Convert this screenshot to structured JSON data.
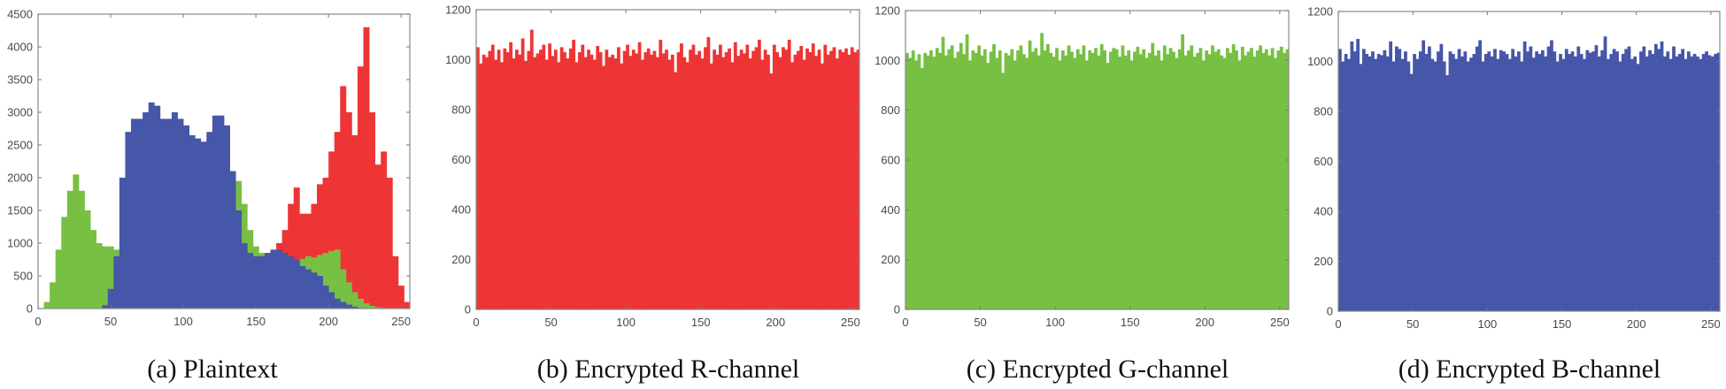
{
  "chart_data": [
    {
      "type": "bar",
      "caption": "(a) Plaintext",
      "xlim": [
        0,
        256
      ],
      "ylim": [
        0,
        4500
      ],
      "xticks": [
        "0",
        "50",
        "100",
        "150",
        "200",
        "250"
      ],
      "yticks": [
        "0",
        "500",
        "1000",
        "1500",
        "2000",
        "2500",
        "3000",
        "3500",
        "4000",
        "4500"
      ],
      "bin_width": 4,
      "x_start": 0,
      "series": [
        {
          "color": "#EE3535",
          "values": [
            0,
            0,
            0,
            0,
            0,
            0,
            0,
            0,
            0,
            0,
            0,
            0,
            0,
            0,
            0,
            0,
            0,
            0,
            0,
            0,
            0,
            0,
            0,
            0,
            0,
            0,
            0,
            0,
            0,
            0,
            0,
            0,
            0,
            0,
            0,
            0,
            0,
            0,
            800,
            850,
            900,
            1000,
            1200,
            1600,
            1850,
            1450,
            1450,
            1600,
            1900,
            2000,
            2400,
            2700,
            3400,
            3000,
            2650,
            3700,
            4300,
            3000,
            2200,
            2400,
            2000,
            800,
            350,
            100
          ]
        },
        {
          "color": "#77C043",
          "values": [
            0,
            100,
            400,
            900,
            1400,
            1800,
            2050,
            1800,
            1500,
            1200,
            1000,
            950,
            950,
            900,
            1000,
            1200,
            1300,
            1400,
            1500,
            1600,
            1700,
            1800,
            1900,
            1900,
            1900,
            1900,
            1900,
            1900,
            1950,
            2000,
            2050,
            2100,
            2100,
            2100,
            1950,
            1600,
            1200,
            950,
            850,
            800,
            780,
            760,
            740,
            720,
            700,
            760,
            800,
            780,
            820,
            850,
            880,
            900,
            600,
            400,
            250,
            150,
            80,
            40,
            20,
            10,
            0,
            0,
            0,
            0
          ]
        },
        {
          "color": "#4656A8",
          "values": [
            0,
            0,
            0,
            0,
            0,
            0,
            0,
            0,
            0,
            0,
            0,
            50,
            300,
            800,
            2000,
            2700,
            2900,
            2900,
            3000,
            3150,
            3100,
            2900,
            2900,
            3000,
            2900,
            2800,
            2650,
            2600,
            2550,
            2700,
            2950,
            2950,
            2800,
            2100,
            1500,
            1000,
            850,
            800,
            800,
            850,
            900,
            900,
            850,
            800,
            750,
            650,
            600,
            550,
            500,
            350,
            250,
            150,
            100,
            60,
            30,
            10,
            0,
            0,
            0,
            0,
            0,
            0,
            0,
            0
          ]
        }
      ]
    },
    {
      "type": "bar",
      "caption": "(b) Encrypted R-channel",
      "xlim": [
        0,
        256
      ],
      "ylim": [
        0,
        1200
      ],
      "xticks": [
        "0",
        "50",
        "100",
        "150",
        "200",
        "250"
      ],
      "yticks": [
        "0",
        "200",
        "400",
        "600",
        "800",
        "1000",
        "1200"
      ],
      "bin_width": 2,
      "x_start": 0,
      "series": [
        {
          "color": "#EE3535",
          "values": [
            1050,
            985,
            1020,
            1010,
            1035,
            1060,
            1000,
            1040,
            990,
            1045,
            1030,
            1070,
            1005,
            1040,
            1020,
            1085,
            995,
            1035,
            1120,
            1010,
            1025,
            1040,
            1060,
            1000,
            1065,
            1015,
            1040,
            990,
            1050,
            1030,
            1005,
            1045,
            1080,
            990,
            1030,
            1060,
            1010,
            1040,
            1020,
            1000,
            1055,
            1030,
            975,
            1040,
            1010,
            1020,
            1005,
            1050,
            985,
            1035,
            1060,
            1015,
            1040,
            1025,
            1070,
            1000,
            1030,
            1045,
            1020,
            1035,
            1010,
            1080,
            1025,
            1040,
            1000,
            1020,
            950,
            1030,
            1065,
            1010,
            990,
            1040,
            1060,
            1020,
            1035,
            1005,
            1050,
            1090,
            985,
            1040,
            1020,
            1060,
            1010,
            1030,
            1045,
            990,
            1070,
            1015,
            1040,
            1025,
            1060,
            1005,
            1035,
            1050,
            1080,
            1000,
            1040,
            1020,
            945,
            1060,
            1030,
            1010,
            1050,
            1040,
            1080,
            990,
            1020,
            1035,
            1055,
            1000,
            1045,
            1030,
            1065,
            1015,
            1040,
            985,
            1060,
            1020,
            1035,
            1050,
            1005,
            1040,
            1030,
            1045,
            1020,
            1050,
            1030,
            1040
          ]
        }
      ]
    },
    {
      "type": "bar",
      "caption": "(c) Encrypted G-channel",
      "xlim": [
        0,
        256
      ],
      "ylim": [
        0,
        1200
      ],
      "xticks": [
        "0",
        "50",
        "100",
        "150",
        "200",
        "250"
      ],
      "yticks": [
        "0",
        "200",
        "400",
        "600",
        "800",
        "1000",
        "1200"
      ],
      "bin_width": 2,
      "x_start": 0,
      "series": [
        {
          "color": "#77C043",
          "values": [
            1030,
            1010,
            1040,
            1000,
            1025,
            970,
            1030,
            1020,
            1040,
            1015,
            1050,
            1030,
            1095,
            1020,
            1045,
            1060,
            1010,
            1035,
            1070,
            1025,
            1105,
            1000,
            1040,
            1030,
            1060,
            1020,
            1045,
            990,
            1035,
            1065,
            1010,
            1040,
            950,
            1030,
            1020,
            1045,
            1000,
            1040,
            1060,
            1025,
            1010,
            1080,
            1035,
            1050,
            1020,
            1110,
            1040,
            1065,
            1030,
            1015,
            1050,
            1000,
            1040,
            1020,
            1060,
            1035,
            1010,
            1045,
            1025,
            1060,
            1000,
            1040,
            1030,
            1050,
            1020,
            1065,
            1040,
            990,
            1035,
            1050,
            1045,
            1015,
            1060,
            1020,
            1040,
            1000,
            1035,
            1055,
            1025,
            1045,
            1010,
            1030,
            1070,
            1020,
            1040,
            1000,
            1060,
            1025,
            1050,
            1035,
            1010,
            1045,
            1105,
            1020,
            1040,
            1060,
            1015,
            1030,
            1050,
            1000,
            1040,
            1025,
            1060,
            1035,
            1045,
            1020,
            1010,
            1050,
            1030,
            1065,
            1040,
            1000,
            1055,
            1020,
            1035,
            1050,
            1015,
            1040,
            1060,
            1030,
            1045,
            1020,
            1050,
            1010,
            1040,
            1055,
            1030,
            1045
          ]
        }
      ]
    },
    {
      "type": "bar",
      "caption": "(d) Encrypted B-channel",
      "xlim": [
        0,
        256
      ],
      "ylim": [
        0,
        1200
      ],
      "xticks": [
        "0",
        "50",
        "100",
        "150",
        "200",
        "250"
      ],
      "yticks": [
        "0",
        "200",
        "400",
        "600",
        "800",
        "1000",
        "1200"
      ],
      "bin_width": 2,
      "x_start": 0,
      "series": [
        {
          "color": "#4656A8",
          "values": [
            1050,
            1000,
            1030,
            1010,
            1080,
            1040,
            1090,
            990,
            1050,
            1030,
            1020,
            1040,
            1010,
            1030,
            1025,
            1045,
            1020,
            1080,
            1000,
            1060,
            1050,
            1010,
            1040,
            1000,
            950,
            1030,
            1010,
            1040,
            1085,
            1030,
            1060,
            1010,
            1000,
            1040,
            1070,
            1000,
            945,
            1040,
            1030,
            1010,
            1050,
            1020,
            1040,
            1000,
            1015,
            1030,
            1060,
            1085,
            1000,
            1030,
            1040,
            1020,
            1050,
            1010,
            1045,
            1040,
            1030,
            1010,
            1050,
            1020,
            1040,
            1000,
            1080,
            1040,
            1060,
            1015,
            1040,
            1030,
            1045,
            1020,
            1060,
            1085,
            1040,
            1000,
            1030,
            1010,
            1050,
            1030,
            1040,
            1020,
            1060,
            1030,
            1010,
            1045,
            1035,
            1040,
            1065,
            1020,
            1045,
            1100,
            1010,
            1030,
            1050,
            1040,
            1000,
            1030,
            1050,
            1060,
            1010,
            1020,
            990,
            1040,
            1060,
            1020,
            1045,
            1030,
            1070,
            1050,
            1080,
            1020,
            1040,
            1010,
            1060,
            1020,
            1030,
            1050,
            1010,
            1040,
            1020,
            1030,
            1020,
            1010,
            1030,
            1040,
            1025,
            1020,
            1030,
            1035
          ]
        }
      ]
    }
  ]
}
